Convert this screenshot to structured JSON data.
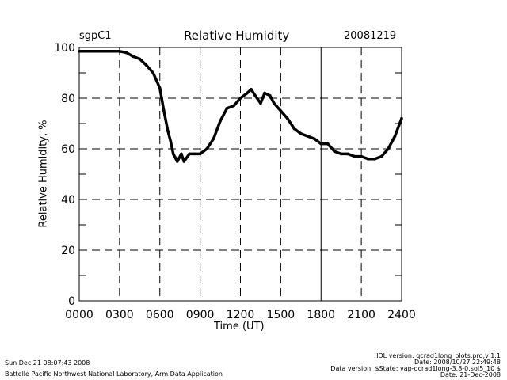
{
  "chart_data": {
    "type": "line",
    "title": "Relative Humidity",
    "site": "sgpC1",
    "date": "20081219",
    "xlabel": "Time (UT)",
    "ylabel": "Relative Humidity, %",
    "xlim": [
      0,
      24
    ],
    "ylim": [
      0,
      100
    ],
    "xtick_values": [
      0,
      3,
      6,
      9,
      12,
      15,
      18,
      21,
      24
    ],
    "xtick_labels": [
      "0000",
      "0300",
      "0600",
      "0900",
      "1200",
      "1500",
      "1800",
      "2100",
      "2400"
    ],
    "ytick_values": [
      0,
      20,
      40,
      60,
      80,
      100
    ],
    "ytick_labels": [
      "0",
      "20",
      "40",
      "60",
      "80",
      "100"
    ],
    "grid": true,
    "x": [
      0,
      3,
      3.5,
      4,
      4.5,
      5,
      5.5,
      6,
      6.3,
      6.6,
      6.8,
      7,
      7.3,
      7.6,
      7.8,
      8.2,
      8.6,
      9,
      9.5,
      10,
      10.5,
      11,
      11.5,
      12,
      12.5,
      12.8,
      13.1,
      13.5,
      13.8,
      14.2,
      14.5,
      15,
      15.5,
      16,
      16.5,
      17,
      17.5,
      18,
      18.5,
      19,
      19.5,
      20,
      20.5,
      21,
      21.5,
      22,
      22.5,
      23,
      23.5,
      24
    ],
    "y": [
      98.5,
      98.5,
      98,
      96.5,
      95.5,
      93,
      90,
      84,
      75,
      67,
      63,
      58,
      55,
      58,
      55,
      58,
      58,
      58,
      60,
      64,
      71,
      76,
      77,
      80,
      82,
      83.5,
      81,
      78,
      82,
      81,
      78,
      75,
      72,
      68,
      66,
      65,
      64,
      62,
      62,
      59,
      58,
      58,
      57,
      57,
      56,
      56,
      57,
      60,
      65,
      72
    ]
  },
  "footer": {
    "timestamp": "Sun Dec 21 08:07:43 2008",
    "lab": "Battelle Pacific Northwest National Laboratory, Arm Data Application",
    "idl_version": "IDL version: qcrad1long_plots.pro,v 1.1",
    "idl_date": "Date: 2008/10/27 22:49:48",
    "data_version": "Data version: $State: vap-qcrad1long-3.8-0.sol5_10 $",
    "data_date": "Date: 21-Dec-2008"
  }
}
